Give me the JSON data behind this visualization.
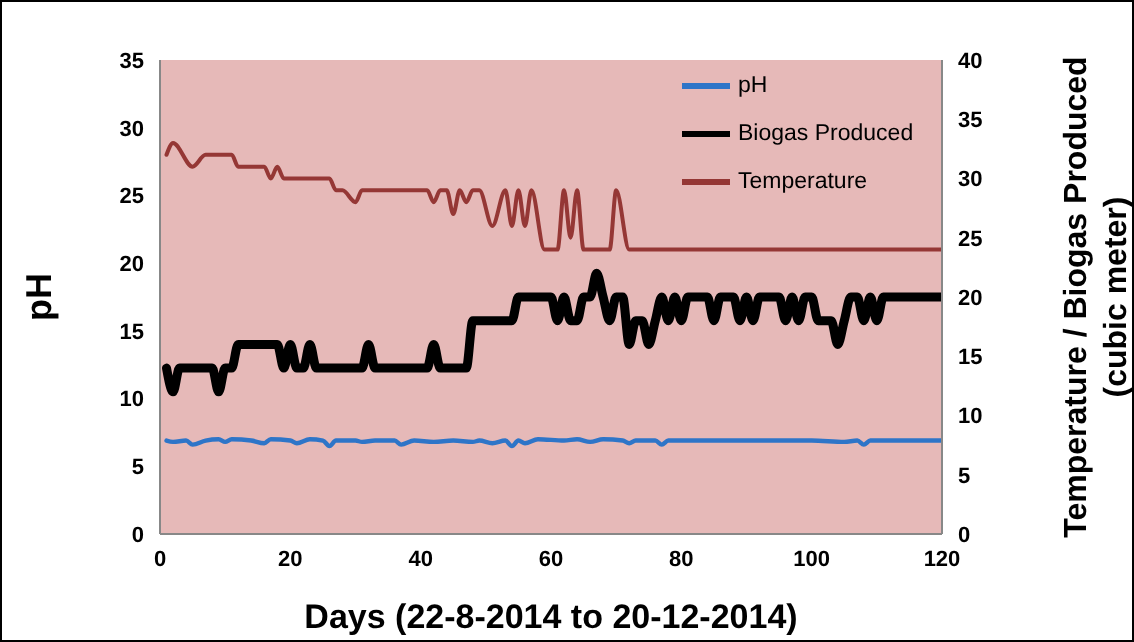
{
  "chart_data": {
    "type": "line",
    "xlabel": "Days (22-8-2014 to 20-12-2014)",
    "ylabel": "pH",
    "y2label": "Temperature / Biogas Produced (cubic meter)",
    "xlim": [
      0,
      120
    ],
    "xticks": [
      0,
      20,
      40,
      60,
      80,
      100,
      120
    ],
    "ylim": [
      0,
      35
    ],
    "yticks": [
      0,
      5,
      10,
      15,
      20,
      25,
      30,
      35
    ],
    "y2lim": [
      0,
      40
    ],
    "y2ticks": [
      0,
      5,
      10,
      15,
      20,
      25,
      30,
      35,
      40
    ],
    "grid": false,
    "legend": "top right",
    "marker": "none",
    "line_style": "solid",
    "series": [
      {
        "name": "pH",
        "color": "#2e75c8",
        "x": [
          1,
          2,
          4,
          5,
          7,
          9,
          10,
          11,
          14,
          16,
          17,
          20,
          21,
          23,
          25,
          26,
          27,
          30,
          31,
          33,
          36,
          37,
          39,
          42,
          45,
          48,
          49,
          51,
          53,
          54,
          55,
          56,
          58,
          62,
          64,
          66,
          68,
          71,
          72,
          73,
          76,
          77,
          78,
          85,
          95,
          100,
          105,
          107,
          108,
          109,
          120
        ],
        "values": [
          6.9,
          6.8,
          6.9,
          6.6,
          6.9,
          7.0,
          6.8,
          7.0,
          6.9,
          6.7,
          7.0,
          6.9,
          6.7,
          7.0,
          6.9,
          6.5,
          6.9,
          6.9,
          6.8,
          6.9,
          6.9,
          6.6,
          6.9,
          6.8,
          6.9,
          6.8,
          6.9,
          6.7,
          6.9,
          6.5,
          6.9,
          6.7,
          7.0,
          6.9,
          7.0,
          6.8,
          7.0,
          6.9,
          6.7,
          6.9,
          6.9,
          6.6,
          6.9,
          6.9,
          6.9,
          6.9,
          6.8,
          6.9,
          6.6,
          6.9,
          6.9
        ]
      },
      {
        "name": "Biogas Produced",
        "color": "#000000",
        "axis": "y2",
        "x": [
          1,
          2,
          3,
          8,
          9,
          10,
          11,
          12,
          18,
          19,
          20,
          21,
          22,
          23,
          24,
          31,
          32,
          33,
          41,
          42,
          43,
          47,
          48,
          54,
          55,
          60,
          61,
          62,
          63,
          64,
          65,
          66,
          67,
          68,
          69,
          70,
          71,
          72,
          73,
          74,
          75,
          76,
          77,
          78,
          79,
          80,
          81,
          84,
          85,
          86,
          88,
          89,
          90,
          91,
          92,
          95,
          96,
          97,
          98,
          99,
          100,
          101,
          103,
          104,
          105,
          106,
          107,
          108,
          109,
          110,
          111,
          120
        ],
        "values": [
          14,
          12,
          14,
          14,
          12,
          14,
          14,
          16,
          16,
          14,
          16,
          14,
          14,
          16,
          14,
          14,
          16,
          14,
          14,
          16,
          14,
          14,
          18,
          18,
          20,
          20,
          18,
          20,
          18,
          18,
          20,
          20,
          22,
          20,
          18,
          20,
          20,
          16,
          18,
          18,
          16,
          18,
          20,
          18,
          20,
          18,
          20,
          20,
          18,
          20,
          20,
          18,
          20,
          18,
          20,
          20,
          18,
          20,
          18,
          20,
          20,
          18,
          18,
          16,
          18,
          20,
          20,
          18,
          20,
          18,
          20,
          20
        ]
      },
      {
        "name": "Temperature",
        "color": "#953735",
        "axis": "y2",
        "x": [
          1,
          2,
          5,
          7,
          11,
          12,
          16,
          17,
          18,
          19,
          26,
          27,
          28,
          30,
          31,
          41,
          42,
          43,
          44,
          45,
          46,
          47,
          48,
          49,
          51,
          53,
          54,
          55,
          56,
          57,
          59,
          61,
          62,
          63,
          64,
          65,
          69,
          70,
          72,
          120
        ],
        "values": [
          32,
          33,
          31,
          32,
          32,
          31,
          31,
          30,
          31,
          30,
          30,
          29,
          29,
          28,
          29,
          29,
          28,
          29,
          29,
          27,
          29,
          28,
          29,
          29,
          26,
          29,
          26,
          29,
          26,
          29,
          24,
          24,
          29,
          25,
          29,
          24,
          24,
          29,
          24,
          24
        ]
      }
    ]
  }
}
